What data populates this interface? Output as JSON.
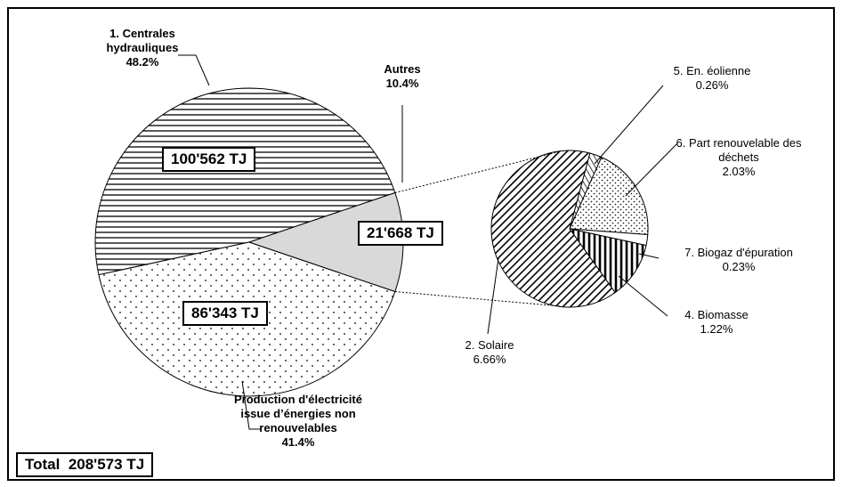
{
  "chart_data": {
    "type": "pie-of-pie",
    "categories": [
      "1. Centrales hydrauliques",
      "Production d'électricité issue d’énergies non renouvelables",
      "Autres"
    ],
    "values": [
      48.2,
      41.4,
      10.4
    ],
    "value_labels": [
      "48.2%",
      "41.4%",
      "10.4%"
    ],
    "energy_values": [
      100562,
      86343,
      21668
    ],
    "energy_labels": [
      "100'562 TJ",
      "86'343 TJ",
      "21'668 TJ"
    ],
    "total_title": "Total",
    "total": 208573,
    "total_label": "208'573 TJ",
    "sub": {
      "categories": [
        "5. En. éolienne",
        "6. Part renouvelable des déchets",
        "7. Biogaz d'épuration",
        "4. Biomasse",
        "2. Solaire"
      ],
      "values": [
        0.26,
        2.03,
        0.23,
        1.22,
        6.66
      ],
      "value_labels": [
        "0.26%",
        "2.03%",
        "0.23%",
        "1.22%",
        "6.66%"
      ]
    }
  }
}
